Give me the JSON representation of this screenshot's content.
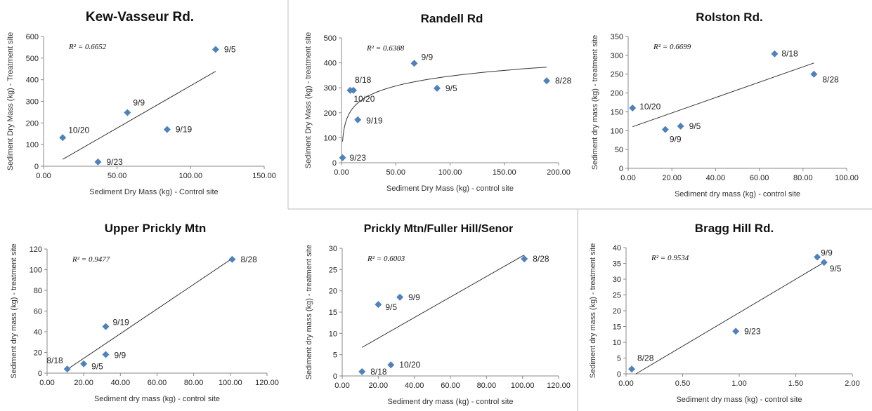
{
  "colors": {
    "marker": "#4f81bd",
    "trendline": "#333333"
  },
  "chart_data": [
    {
      "type": "scatter",
      "title": "Kew-Vasseur Rd.",
      "xlabel": "Sediment Dry Mass (kg) - Control site",
      "ylabel": "Sediment Dry Mass (kg) - Treatment site",
      "xlim": [
        0,
        150
      ],
      "ylim": [
        0,
        600
      ],
      "xticks": [
        "0.00",
        "50.00",
        "100.00",
        "150.00"
      ],
      "yticks": [
        "0",
        "100",
        "200",
        "300",
        "400",
        "500",
        "600"
      ],
      "r2": "R² = 0.6652",
      "trendline": "linear",
      "points": [
        {
          "x": 117,
          "y": 540,
          "label": "9/5"
        },
        {
          "x": 57,
          "y": 248,
          "label": "9/9"
        },
        {
          "x": 13,
          "y": 132,
          "label": "10/20"
        },
        {
          "x": 84,
          "y": 170,
          "label": "9/19"
        },
        {
          "x": 37,
          "y": 20,
          "label": "9/23"
        }
      ]
    },
    {
      "type": "scatter",
      "title": "Randell Rd",
      "xlabel": "Sediment Dry Mass (kg) - control site",
      "ylabel": "Sediment Dry Mass (kg) - treatment site",
      "xlim": [
        0,
        200
      ],
      "ylim": [
        0,
        500
      ],
      "xticks": [
        "0.00",
        "50.00",
        "100.00",
        "150.00",
        "200.00"
      ],
      "yticks": [
        "0",
        "100",
        "200",
        "300",
        "400",
        "500"
      ],
      "r2": "R² = 0.6388",
      "trendline": "log",
      "points": [
        {
          "x": 67,
          "y": 398,
          "label": "9/9"
        },
        {
          "x": 11,
          "y": 290,
          "label": "8/18"
        },
        {
          "x": 8,
          "y": 290,
          "label": "10/20"
        },
        {
          "x": 88,
          "y": 298,
          "label": "9/5"
        },
        {
          "x": 189,
          "y": 328,
          "label": "8/28"
        },
        {
          "x": 15,
          "y": 172,
          "label": "9/19"
        },
        {
          "x": 1,
          "y": 20,
          "label": "9/23"
        }
      ]
    },
    {
      "type": "scatter",
      "title": "Rolston Rd.",
      "xlabel": "Sediment dry mass (kg) - control site",
      "ylabel": "Sediment dry mass (kg) - treatment site",
      "xlim": [
        0,
        100
      ],
      "ylim": [
        0,
        350
      ],
      "xticks": [
        "0.00",
        "20.00",
        "40.00",
        "60.00",
        "80.00",
        "100.00"
      ],
      "yticks": [
        "0",
        "50",
        "100",
        "150",
        "200",
        "250",
        "300",
        "350"
      ],
      "r2": "R² = 0.6699",
      "trendline": "linear",
      "points": [
        {
          "x": 67,
          "y": 304,
          "label": "8/18"
        },
        {
          "x": 85,
          "y": 250,
          "label": "8/28"
        },
        {
          "x": 2,
          "y": 160,
          "label": "10/20"
        },
        {
          "x": 24,
          "y": 112,
          "label": "9/5"
        },
        {
          "x": 17,
          "y": 103,
          "label": "9/9"
        }
      ]
    },
    {
      "type": "scatter",
      "title": "Upper Prickly Mtn",
      "xlabel": "Sediment dry mass (kg) - control site",
      "ylabel": "Sediment dry mass (kg) - treatment site",
      "xlim": [
        0,
        120
      ],
      "ylim": [
        0,
        120
      ],
      "xticks": [
        "0.00",
        "20.00",
        "40.00",
        "60.00",
        "80.00",
        "100.00",
        "120.00"
      ],
      "yticks": [
        "0",
        "20",
        "40",
        "60",
        "80",
        "100",
        "120"
      ],
      "r2": "R² = 0.9477",
      "trendline": "linear",
      "points": [
        {
          "x": 101,
          "y": 110,
          "label": "8/28"
        },
        {
          "x": 32,
          "y": 45,
          "label": "9/19"
        },
        {
          "x": 32,
          "y": 18,
          "label": "9/9"
        },
        {
          "x": 20,
          "y": 9,
          "label": "9/5"
        },
        {
          "x": 11,
          "y": 4,
          "label": "8/18"
        }
      ]
    },
    {
      "type": "scatter",
      "title": "Prickly Mtn/Fuller Hill/Senor",
      "xlabel": "Sediment dry mass (kg) - control site",
      "ylabel": "Sediment dry mass (kg) - treatment site",
      "xlim": [
        0,
        120
      ],
      "ylim": [
        0,
        30
      ],
      "xticks": [
        "0.00",
        "20.00",
        "40.00",
        "60.00",
        "80.00",
        "100.00",
        "120.00"
      ],
      "yticks": [
        "0",
        "5",
        "10",
        "15",
        "20",
        "25",
        "30"
      ],
      "r2": "R² = 0.6003",
      "trendline": "linear",
      "points": [
        {
          "x": 101,
          "y": 27.5,
          "label": "8/28"
        },
        {
          "x": 32,
          "y": 18.5,
          "label": "9/9"
        },
        {
          "x": 20,
          "y": 16.8,
          "label": "9/5"
        },
        {
          "x": 27,
          "y": 2.6,
          "label": "10/20"
        },
        {
          "x": 11,
          "y": 1,
          "label": "8/18"
        }
      ]
    },
    {
      "type": "scatter",
      "title": "Bragg Hill Rd.",
      "xlabel": "Sediment dry mass (kg) - control site",
      "ylabel": "Sediment dry mass (kg) - treatment site",
      "xlim": [
        0,
        2
      ],
      "ylim": [
        0,
        40
      ],
      "xticks": [
        "0.00",
        "0.50",
        "1.00",
        "1.50",
        "2.00"
      ],
      "yticks": [
        "0",
        "5",
        "10",
        "15",
        "20",
        "25",
        "30",
        "35",
        "40"
      ],
      "r2": "R² = 0.9534",
      "trendline": "linear",
      "points": [
        {
          "x": 1.69,
          "y": 37,
          "label": "9/9"
        },
        {
          "x": 1.75,
          "y": 35.3,
          "label": "9/5"
        },
        {
          "x": 0.97,
          "y": 13.5,
          "label": "9/23"
        },
        {
          "x": 0.05,
          "y": 1.5,
          "label": "8/28"
        }
      ]
    }
  ]
}
